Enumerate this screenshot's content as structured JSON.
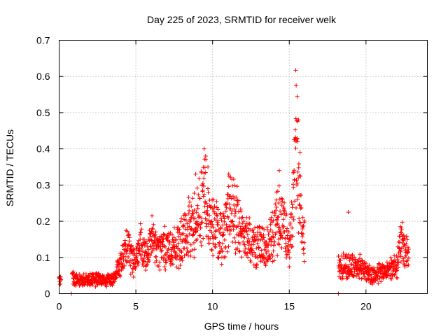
{
  "chart_data": {
    "type": "scatter",
    "title": "Day 225 of 2023, SRMTID for receiver welk",
    "xlabel": "GPS time / hours",
    "ylabel": "SRMTID / TECUs",
    "xlim": [
      0,
      24
    ],
    "ylim": [
      0,
      0.7
    ],
    "x_ticks": [
      0,
      5,
      10,
      15,
      20
    ],
    "y_ticks": [
      0,
      0.1,
      0.2,
      0.3,
      0.4,
      0.5,
      0.6,
      0.7
    ],
    "y_tick_labels": [
      "0",
      "0.1",
      "0.2",
      "0.3",
      "0.4",
      "0.5",
      "0.6",
      "0.7"
    ],
    "grid": true,
    "marker": "+",
    "series": [
      {
        "name": "SRMTID",
        "color": "#ff0000",
        "profile": [
          [
            0.0,
            0.04
          ],
          [
            0.05,
            0.05
          ],
          [
            0.1,
            0.03
          ],
          [
            0.8,
            0.0
          ],
          [
            0.85,
            0.05
          ],
          [
            1.0,
            0.04
          ],
          [
            1.5,
            0.035
          ],
          [
            2.0,
            0.04
          ],
          [
            2.5,
            0.04
          ],
          [
            3.0,
            0.035
          ],
          [
            3.5,
            0.04
          ],
          [
            3.8,
            0.07
          ],
          [
            4.2,
            0.1
          ],
          [
            4.5,
            0.13
          ],
          [
            4.8,
            0.09
          ],
          [
            5.0,
            0.1
          ],
          [
            5.3,
            0.13
          ],
          [
            5.6,
            0.1
          ],
          [
            6.0,
            0.14
          ],
          [
            6.5,
            0.12
          ],
          [
            7.0,
            0.13
          ],
          [
            7.5,
            0.12
          ],
          [
            8.0,
            0.14
          ],
          [
            8.5,
            0.18
          ],
          [
            9.0,
            0.21
          ],
          [
            9.5,
            0.28
          ],
          [
            9.8,
            0.2
          ],
          [
            10.2,
            0.18
          ],
          [
            10.6,
            0.15
          ],
          [
            11.0,
            0.23
          ],
          [
            11.3,
            0.22
          ],
          [
            11.6,
            0.2
          ],
          [
            12.0,
            0.16
          ],
          [
            12.5,
            0.14
          ],
          [
            13.0,
            0.13
          ],
          [
            13.5,
            0.12
          ],
          [
            14.0,
            0.16
          ],
          [
            14.3,
            0.24
          ],
          [
            14.6,
            0.2
          ],
          [
            15.0,
            0.12
          ],
          [
            15.2,
            0.2
          ],
          [
            15.4,
            0.4
          ],
          [
            15.6,
            0.3
          ],
          [
            15.9,
            0.16
          ],
          [
            18.2,
            0.0
          ],
          [
            18.3,
            0.07
          ],
          [
            18.8,
            0.08
          ],
          [
            19.2,
            0.07
          ],
          [
            19.6,
            0.08
          ],
          [
            20.0,
            0.06
          ],
          [
            20.5,
            0.05
          ],
          [
            21.0,
            0.06
          ],
          [
            21.5,
            0.07
          ],
          [
            22.0,
            0.08
          ],
          [
            22.3,
            0.14
          ],
          [
            22.6,
            0.12
          ],
          [
            22.8,
            0.11
          ]
        ],
        "gaps": [
          [
            16.0,
            18.2
          ]
        ],
        "peaks": [
          [
            15.42,
            0.617
          ],
          [
            15.45,
            0.575
          ],
          [
            15.52,
            0.545
          ],
          [
            15.6,
            0.48
          ],
          [
            15.55,
            0.42
          ],
          [
            15.7,
            0.39
          ],
          [
            9.45,
            0.4
          ],
          [
            9.55,
            0.38
          ],
          [
            9.7,
            0.35
          ],
          [
            8.9,
            0.33
          ],
          [
            11.05,
            0.33
          ],
          [
            14.35,
            0.34
          ],
          [
            18.85,
            0.225
          ],
          [
            22.25,
            0.185
          ],
          [
            6.05,
            0.215
          ],
          [
            0.8,
            0.0
          ],
          [
            18.2,
            0.0
          ]
        ]
      }
    ]
  }
}
